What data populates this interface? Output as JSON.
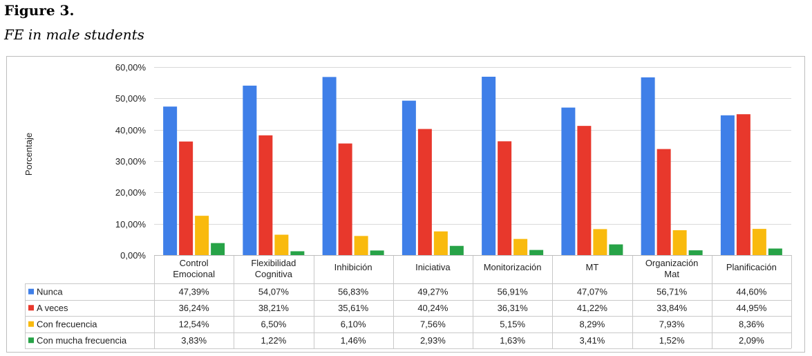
{
  "figure": {
    "label": "Figure 3.",
    "caption": "FE in male students"
  },
  "chart_data": {
    "type": "bar",
    "title": "",
    "ylabel": "Porcentaje",
    "xlabel": "",
    "ylim": [
      0,
      60
    ],
    "yticks": [
      "0,00%",
      "10,00%",
      "20,00%",
      "30,00%",
      "40,00%",
      "50,00%",
      "60,00%"
    ],
    "grid": true,
    "legend": "table-left",
    "categories": [
      [
        "Control",
        "Emocional"
      ],
      [
        "Flexibilidad",
        "Cognitiva"
      ],
      [
        "Inhibición"
      ],
      [
        "Iniciativa"
      ],
      [
        "Monitorización"
      ],
      [
        "MT"
      ],
      [
        "Organización",
        "Mat"
      ],
      [
        "Planificación"
      ]
    ],
    "series": [
      {
        "name": "Nunca",
        "color": "#3f7fe8",
        "values": [
          47.39,
          54.07,
          56.83,
          49.27,
          56.91,
          47.07,
          56.71,
          44.6
        ],
        "labels": [
          "47,39%",
          "54,07%",
          "56,83%",
          "49,27%",
          "56,91%",
          "47,07%",
          "56,71%",
          "44,60%"
        ]
      },
      {
        "name": "A veces",
        "color": "#e8382c",
        "values": [
          36.24,
          38.21,
          35.61,
          40.24,
          36.31,
          41.22,
          33.84,
          44.95
        ],
        "labels": [
          "36,24%",
          "38,21%",
          "35,61%",
          "40,24%",
          "36,31%",
          "41,22%",
          "33,84%",
          "44,95%"
        ]
      },
      {
        "name": "Con frecuencia",
        "color": "#f9ba0e",
        "values": [
          12.54,
          6.5,
          6.1,
          7.56,
          5.15,
          8.29,
          7.93,
          8.36
        ],
        "labels": [
          "12,54%",
          "6,50%",
          "6,10%",
          "7,56%",
          "5,15%",
          "8,29%",
          "7,93%",
          "8,36%"
        ]
      },
      {
        "name": "Con mucha frecuencia",
        "color": "#27a347",
        "values": [
          3.83,
          1.22,
          1.46,
          2.93,
          1.63,
          3.41,
          1.52,
          2.09
        ],
        "labels": [
          "3,83%",
          "1,22%",
          "1,46%",
          "2,93%",
          "1,63%",
          "3,41%",
          "1,52%",
          "2,09%"
        ]
      }
    ]
  }
}
